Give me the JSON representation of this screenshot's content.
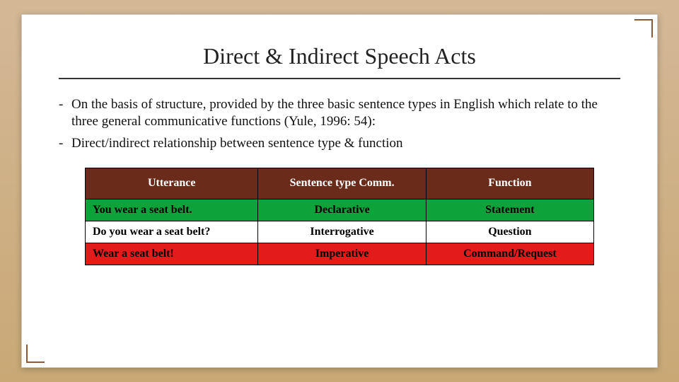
{
  "title": "Direct & Indirect Speech Acts",
  "bullets": [
    "On the basis of structure, provided by the three basic sentence types in English which relate to the three general communicative functions (Yule, 1996: 54):",
    "Direct/indirect relationship between sentence type & function"
  ],
  "table": {
    "headers": {
      "utterance": "Utterance",
      "sentence_type": "Sentence type Comm.",
      "function": "Function"
    },
    "rows": [
      {
        "utterance": "You wear a seat belt.",
        "type": "Declarative",
        "func": "Statement",
        "row_color": "#0ea33a"
      },
      {
        "utterance": "Do you wear a seat belt?",
        "type": "Interrogative",
        "func": "Question",
        "row_color": "#ffffff"
      },
      {
        "utterance": "Wear a seat belt!",
        "type": "Imperative",
        "func": "Command/Request",
        "row_color": "#e31b1b"
      }
    ],
    "header_bg": "#6b2b1a",
    "header_fg": "#ffffff",
    "border_color": "#000000"
  },
  "background_gradient": [
    "#d4b896",
    "#c9a876"
  ],
  "slide_bg": "#ffffff",
  "title_fontsize": 32,
  "body_fontsize": 19,
  "table_fontsize": 16
}
